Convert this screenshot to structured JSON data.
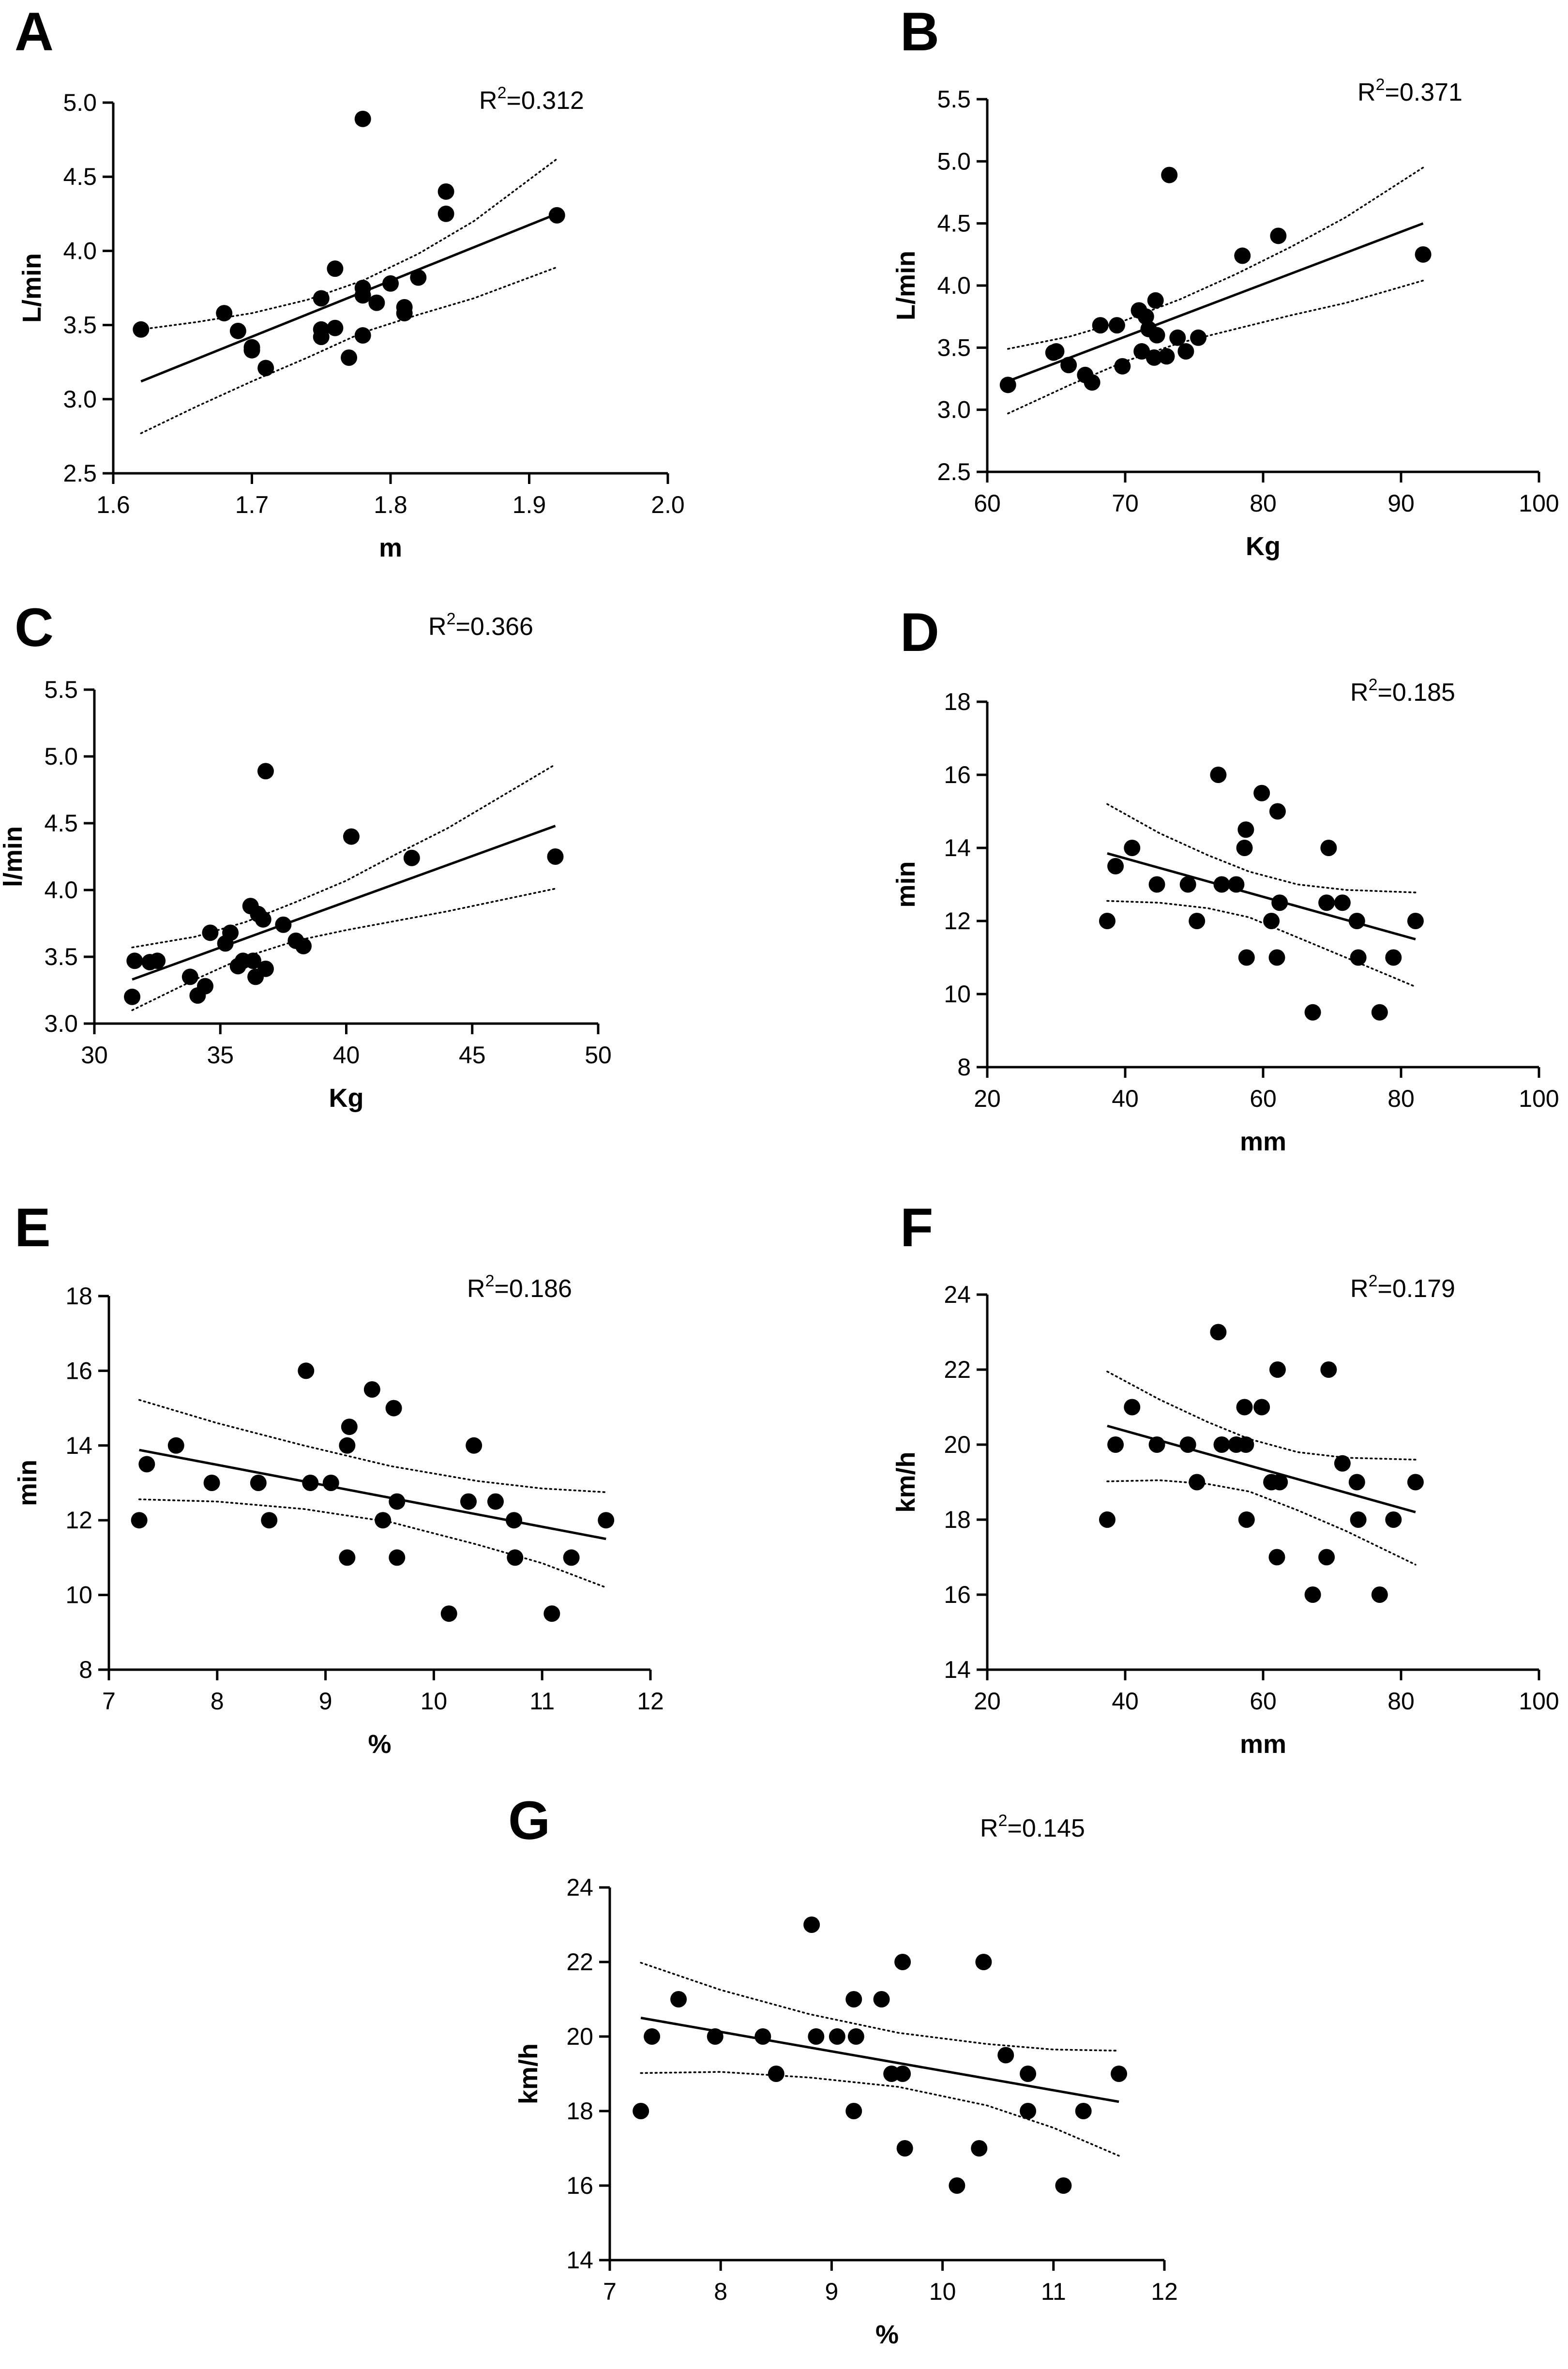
{
  "colors": {
    "point": "#000000",
    "axis": "#000000",
    "background": "#ffffff"
  },
  "chart_data": [
    {
      "panel": "A",
      "type": "scatter",
      "annotation": "0.312",
      "xlabel": "m",
      "ylabel": "L/min",
      "xlim": [
        1.6,
        2.0
      ],
      "ylim": [
        2.5,
        5.0
      ],
      "xticks": [
        "1.6",
        "1.7",
        "1.8",
        "1.9",
        "2.0"
      ],
      "yticks": [
        "2.5",
        "3.0",
        "3.5",
        "4.0",
        "4.5",
        "5.0"
      ],
      "points": [
        [
          1.62,
          3.47
        ],
        [
          1.68,
          3.58
        ],
        [
          1.69,
          3.46
        ],
        [
          1.7,
          3.35
        ],
        [
          1.7,
          3.33
        ],
        [
          1.71,
          3.21
        ],
        [
          1.75,
          3.42
        ],
        [
          1.75,
          3.47
        ],
        [
          1.75,
          3.68
        ],
        [
          1.76,
          3.48
        ],
        [
          1.76,
          3.88
        ],
        [
          1.77,
          3.28
        ],
        [
          1.78,
          3.43
        ],
        [
          1.78,
          3.7
        ],
        [
          1.78,
          3.75
        ],
        [
          1.78,
          4.89
        ],
        [
          1.79,
          3.65
        ],
        [
          1.8,
          3.78
        ],
        [
          1.81,
          3.58
        ],
        [
          1.81,
          3.62
        ],
        [
          1.82,
          3.82
        ],
        [
          1.84,
          4.25
        ],
        [
          1.84,
          4.4
        ],
        [
          1.92,
          4.24
        ]
      ],
      "fit": [
        [
          1.62,
          3.12
        ],
        [
          1.92,
          4.25
        ]
      ],
      "ci_upper": [
        [
          1.62,
          3.47
        ],
        [
          1.66,
          3.52
        ],
        [
          1.7,
          3.58
        ],
        [
          1.74,
          3.67
        ],
        [
          1.78,
          3.8
        ],
        [
          1.82,
          3.98
        ],
        [
          1.86,
          4.2
        ],
        [
          1.92,
          4.62
        ]
      ],
      "ci_lower": [
        [
          1.62,
          2.77
        ],
        [
          1.66,
          2.95
        ],
        [
          1.7,
          3.12
        ],
        [
          1.74,
          3.28
        ],
        [
          1.78,
          3.45
        ],
        [
          1.82,
          3.57
        ],
        [
          1.86,
          3.68
        ],
        [
          1.92,
          3.89
        ]
      ]
    },
    {
      "panel": "B",
      "type": "scatter",
      "annotation": "0.371",
      "xlabel": "Kg",
      "ylabel": "L/min",
      "xlim": [
        60,
        100
      ],
      "ylim": [
        2.5,
        5.5
      ],
      "xticks": [
        "60",
        "70",
        "80",
        "90",
        "100"
      ],
      "yticks": [
        "2.5",
        "3.0",
        "3.5",
        "4.0",
        "4.5",
        "5.0",
        "5.5"
      ],
      "points": [
        [
          61.5,
          3.2
        ],
        [
          64.8,
          3.46
        ],
        [
          65.0,
          3.47
        ],
        [
          65.9,
          3.36
        ],
        [
          67.1,
          3.28
        ],
        [
          67.6,
          3.22
        ],
        [
          68.2,
          3.68
        ],
        [
          69.4,
          3.68
        ],
        [
          69.8,
          3.35
        ],
        [
          71.0,
          3.8
        ],
        [
          71.2,
          3.47
        ],
        [
          71.5,
          3.75
        ],
        [
          71.7,
          3.65
        ],
        [
          72.1,
          3.42
        ],
        [
          72.2,
          3.88
        ],
        [
          72.3,
          3.6
        ],
        [
          73.0,
          3.43
        ],
        [
          73.2,
          4.89
        ],
        [
          73.8,
          3.58
        ],
        [
          74.4,
          3.47
        ],
        [
          75.3,
          3.58
        ],
        [
          78.5,
          4.24
        ],
        [
          81.1,
          4.4
        ],
        [
          91.6,
          4.25
        ]
      ],
      "fit": [
        [
          61.5,
          3.23
        ],
        [
          91.6,
          4.5
        ]
      ],
      "ci_upper": [
        [
          61.5,
          3.49
        ],
        [
          66,
          3.59
        ],
        [
          70,
          3.72
        ],
        [
          74,
          3.89
        ],
        [
          78,
          4.09
        ],
        [
          82,
          4.31
        ],
        [
          86,
          4.55
        ],
        [
          91.6,
          4.95
        ]
      ],
      "ci_lower": [
        [
          61.5,
          2.97
        ],
        [
          66,
          3.2
        ],
        [
          70,
          3.39
        ],
        [
          74,
          3.54
        ],
        [
          78,
          3.65
        ],
        [
          82,
          3.76
        ],
        [
          86,
          3.86
        ],
        [
          91.6,
          4.04
        ]
      ]
    },
    {
      "panel": "C",
      "type": "scatter",
      "annotation": "0.366",
      "xlabel": "Kg",
      "ylabel": "l/min",
      "xlim": [
        30,
        50
      ],
      "ylim": [
        3.0,
        5.5
      ],
      "xticks": [
        "30",
        "35",
        "40",
        "45",
        "50"
      ],
      "yticks": [
        "3.0",
        "3.5",
        "4.0",
        "4.5",
        "5.0",
        "5.5"
      ],
      "points": [
        [
          31.5,
          3.2
        ],
        [
          31.6,
          3.47
        ],
        [
          32.2,
          3.46
        ],
        [
          32.5,
          3.47
        ],
        [
          33.8,
          3.35
        ],
        [
          34.1,
          3.21
        ],
        [
          34.4,
          3.28
        ],
        [
          34.6,
          3.68
        ],
        [
          35.2,
          3.6
        ],
        [
          35.4,
          3.68
        ],
        [
          35.7,
          3.43
        ],
        [
          35.9,
          3.47
        ],
        [
          36.2,
          3.88
        ],
        [
          36.3,
          3.47
        ],
        [
          36.4,
          3.35
        ],
        [
          36.5,
          3.82
        ],
        [
          36.7,
          3.78
        ],
        [
          36.8,
          4.89
        ],
        [
          36.8,
          3.41
        ],
        [
          37.5,
          3.74
        ],
        [
          38.0,
          3.62
        ],
        [
          38.3,
          3.58
        ],
        [
          40.2,
          4.4
        ],
        [
          42.6,
          4.24
        ],
        [
          48.3,
          4.25
        ]
      ],
      "fit": [
        [
          31.5,
          3.33
        ],
        [
          48.3,
          4.48
        ]
      ],
      "ci_upper": [
        [
          31.5,
          3.57
        ],
        [
          34,
          3.65
        ],
        [
          36,
          3.76
        ],
        [
          38,
          3.91
        ],
        [
          40,
          4.07
        ],
        [
          42,
          4.27
        ],
        [
          44,
          4.46
        ],
        [
          48.3,
          4.94
        ]
      ],
      "ci_lower": [
        [
          31.5,
          3.1
        ],
        [
          34,
          3.33
        ],
        [
          36,
          3.5
        ],
        [
          38,
          3.62
        ],
        [
          40,
          3.7
        ],
        [
          42,
          3.77
        ],
        [
          44,
          3.84
        ],
        [
          48.3,
          4.01
        ]
      ]
    },
    {
      "panel": "D",
      "type": "scatter",
      "annotation": "0.185",
      "xlabel": "mm",
      "ylabel": "min",
      "xlim": [
        20,
        100
      ],
      "ylim": [
        8,
        18
      ],
      "xticks": [
        "20",
        "40",
        "60",
        "80",
        "100"
      ],
      "yticks": [
        "8",
        "10",
        "12",
        "14",
        "16",
        "18"
      ],
      "points": [
        [
          37.4,
          12.0
        ],
        [
          38.6,
          13.5
        ],
        [
          41.0,
          14.0
        ],
        [
          44.6,
          13.0
        ],
        [
          49.1,
          13.0
        ],
        [
          50.4,
          12.0
        ],
        [
          53.5,
          16.0
        ],
        [
          54.0,
          13.0
        ],
        [
          56.1,
          13.0
        ],
        [
          57.3,
          14.0
        ],
        [
          57.5,
          14.5
        ],
        [
          57.6,
          11.0
        ],
        [
          59.8,
          15.5
        ],
        [
          61.2,
          12.0
        ],
        [
          62.1,
          15.0
        ],
        [
          62.4,
          12.5
        ],
        [
          62.0,
          11.0
        ],
        [
          67.2,
          9.5
        ],
        [
          69.2,
          12.5
        ],
        [
          69.5,
          14.0
        ],
        [
          71.5,
          12.5
        ],
        [
          73.6,
          12.0
        ],
        [
          73.8,
          11.0
        ],
        [
          76.9,
          9.5
        ],
        [
          78.9,
          11.0
        ],
        [
          82.1,
          12.0
        ]
      ],
      "fit": [
        [
          37.4,
          13.85
        ],
        [
          82.1,
          11.5
        ]
      ],
      "ci_upper": [
        [
          37.4,
          15.2
        ],
        [
          45,
          14.4
        ],
        [
          52,
          13.8
        ],
        [
          58,
          13.35
        ],
        [
          65,
          13.0
        ],
        [
          72,
          12.85
        ],
        [
          82.1,
          12.78
        ]
      ],
      "ci_lower": [
        [
          37.4,
          12.55
        ],
        [
          45,
          12.5
        ],
        [
          52,
          12.35
        ],
        [
          58,
          12.1
        ],
        [
          65,
          11.55
        ],
        [
          72,
          11.0
        ],
        [
          82.1,
          10.2
        ]
      ]
    },
    {
      "panel": "E",
      "type": "scatter",
      "annotation": "0.186",
      "xlabel": "%",
      "ylabel": "min",
      "xlim": [
        7,
        12
      ],
      "ylim": [
        8,
        18
      ],
      "xticks": [
        "7",
        "8",
        "9",
        "10",
        "11",
        "12"
      ],
      "yticks": [
        "8",
        "10",
        "12",
        "14",
        "16",
        "18"
      ],
      "points": [
        [
          7.28,
          12.0
        ],
        [
          7.35,
          13.5
        ],
        [
          7.62,
          14.0
        ],
        [
          7.95,
          13.0
        ],
        [
          8.38,
          13.0
        ],
        [
          8.48,
          12.0
        ],
        [
          8.82,
          16.0
        ],
        [
          8.86,
          13.0
        ],
        [
          9.05,
          13.0
        ],
        [
          9.2,
          11.0
        ],
        [
          9.2,
          14.0
        ],
        [
          9.22,
          14.5
        ],
        [
          9.43,
          15.5
        ],
        [
          9.53,
          12.0
        ],
        [
          9.63,
          15.0
        ],
        [
          9.66,
          12.5
        ],
        [
          9.66,
          11.0
        ],
        [
          10.14,
          9.5
        ],
        [
          10.32,
          12.5
        ],
        [
          10.37,
          14.0
        ],
        [
          10.57,
          12.5
        ],
        [
          10.74,
          12.0
        ],
        [
          10.75,
          11.0
        ],
        [
          11.09,
          9.5
        ],
        [
          11.27,
          11.0
        ],
        [
          11.59,
          12.0
        ]
      ],
      "fit": [
        [
          7.28,
          13.88
        ],
        [
          11.59,
          11.5
        ]
      ],
      "ci_upper": [
        [
          7.28,
          15.22
        ],
        [
          8,
          14.6
        ],
        [
          8.8,
          14.0
        ],
        [
          9.6,
          13.45
        ],
        [
          10.4,
          13.05
        ],
        [
          11.0,
          12.85
        ],
        [
          11.59,
          12.75
        ]
      ],
      "ci_lower": [
        [
          7.28,
          12.56
        ],
        [
          8,
          12.5
        ],
        [
          8.8,
          12.3
        ],
        [
          9.6,
          11.95
        ],
        [
          10.4,
          11.35
        ],
        [
          11.0,
          10.85
        ],
        [
          11.59,
          10.2
        ]
      ]
    },
    {
      "panel": "F",
      "type": "scatter",
      "annotation": "0.179",
      "xlabel": "mm",
      "ylabel": "km/h",
      "xlim": [
        20,
        100
      ],
      "ylim": [
        14,
        24
      ],
      "xticks": [
        "20",
        "40",
        "60",
        "80",
        "100"
      ],
      "yticks": [
        "14",
        "16",
        "18",
        "20",
        "22",
        "24"
      ],
      "points": [
        [
          37.4,
          18.0
        ],
        [
          38.6,
          20.0
        ],
        [
          41.0,
          21.0
        ],
        [
          44.6,
          20.0
        ],
        [
          49.1,
          20.0
        ],
        [
          50.4,
          19.0
        ],
        [
          53.5,
          23.0
        ],
        [
          54.0,
          20.0
        ],
        [
          56.1,
          20.0
        ],
        [
          57.3,
          21.0
        ],
        [
          57.5,
          20.0
        ],
        [
          57.6,
          18.0
        ],
        [
          59.8,
          21.0
        ],
        [
          61.2,
          19.0
        ],
        [
          62.1,
          22.0
        ],
        [
          62.4,
          19.0
        ],
        [
          62.0,
          17.0
        ],
        [
          67.2,
          16.0
        ],
        [
          69.2,
          17.0
        ],
        [
          69.5,
          22.0
        ],
        [
          71.5,
          19.5
        ],
        [
          73.6,
          19.0
        ],
        [
          73.8,
          18.0
        ],
        [
          76.9,
          16.0
        ],
        [
          78.9,
          18.0
        ],
        [
          82.1,
          19.0
        ]
      ],
      "fit": [
        [
          37.4,
          20.5
        ],
        [
          82.1,
          18.2
        ]
      ],
      "ci_upper": [
        [
          37.4,
          21.95
        ],
        [
          45,
          21.2
        ],
        [
          52,
          20.6
        ],
        [
          58,
          20.15
        ],
        [
          65,
          19.8
        ],
        [
          72,
          19.65
        ],
        [
          82.1,
          19.6
        ]
      ],
      "ci_lower": [
        [
          37.4,
          19.02
        ],
        [
          45,
          19.05
        ],
        [
          52,
          18.95
        ],
        [
          58,
          18.75
        ],
        [
          65,
          18.25
        ],
        [
          72,
          17.7
        ],
        [
          82.1,
          16.8
        ]
      ]
    },
    {
      "panel": "G",
      "type": "scatter",
      "annotation": "0.145",
      "xlabel": "%",
      "ylabel": "km/h",
      "xlim": [
        7,
        12
      ],
      "ylim": [
        14,
        24
      ],
      "xticks": [
        "7",
        "8",
        "9",
        "10",
        "11",
        "12"
      ],
      "yticks": [
        "14",
        "16",
        "18",
        "20",
        "22",
        "24"
      ],
      "points": [
        [
          7.28,
          18.0
        ],
        [
          7.38,
          20.0
        ],
        [
          7.62,
          21.0
        ],
        [
          7.95,
          20.0
        ],
        [
          8.38,
          20.0
        ],
        [
          8.5,
          19.0
        ],
        [
          8.82,
          23.0
        ],
        [
          8.86,
          20.0
        ],
        [
          9.05,
          20.0
        ],
        [
          9.2,
          18.0
        ],
        [
          9.2,
          21.0
        ],
        [
          9.22,
          20.0
        ],
        [
          9.45,
          21.0
        ],
        [
          9.54,
          19.0
        ],
        [
          9.64,
          22.0
        ],
        [
          9.64,
          19.0
        ],
        [
          9.66,
          17.0
        ],
        [
          10.13,
          16.0
        ],
        [
          10.33,
          17.0
        ],
        [
          10.37,
          22.0
        ],
        [
          10.57,
          19.5
        ],
        [
          10.77,
          19.0
        ],
        [
          10.77,
          18.0
        ],
        [
          11.09,
          16.0
        ],
        [
          11.27,
          18.0
        ],
        [
          11.59,
          19.0
        ]
      ],
      "fit": [
        [
          7.28,
          20.5
        ],
        [
          11.59,
          18.25
        ]
      ],
      "ci_upper": [
        [
          7.28,
          21.98
        ],
        [
          8,
          21.25
        ],
        [
          8.8,
          20.6
        ],
        [
          9.6,
          20.1
        ],
        [
          10.4,
          19.8
        ],
        [
          11.0,
          19.65
        ],
        [
          11.59,
          19.62
        ]
      ],
      "ci_lower": [
        [
          7.28,
          19.02
        ],
        [
          8,
          19.05
        ],
        [
          8.8,
          18.9
        ],
        [
          9.6,
          18.65
        ],
        [
          10.4,
          18.15
        ],
        [
          11.0,
          17.55
        ],
        [
          11.59,
          16.8
        ]
      ]
    }
  ]
}
